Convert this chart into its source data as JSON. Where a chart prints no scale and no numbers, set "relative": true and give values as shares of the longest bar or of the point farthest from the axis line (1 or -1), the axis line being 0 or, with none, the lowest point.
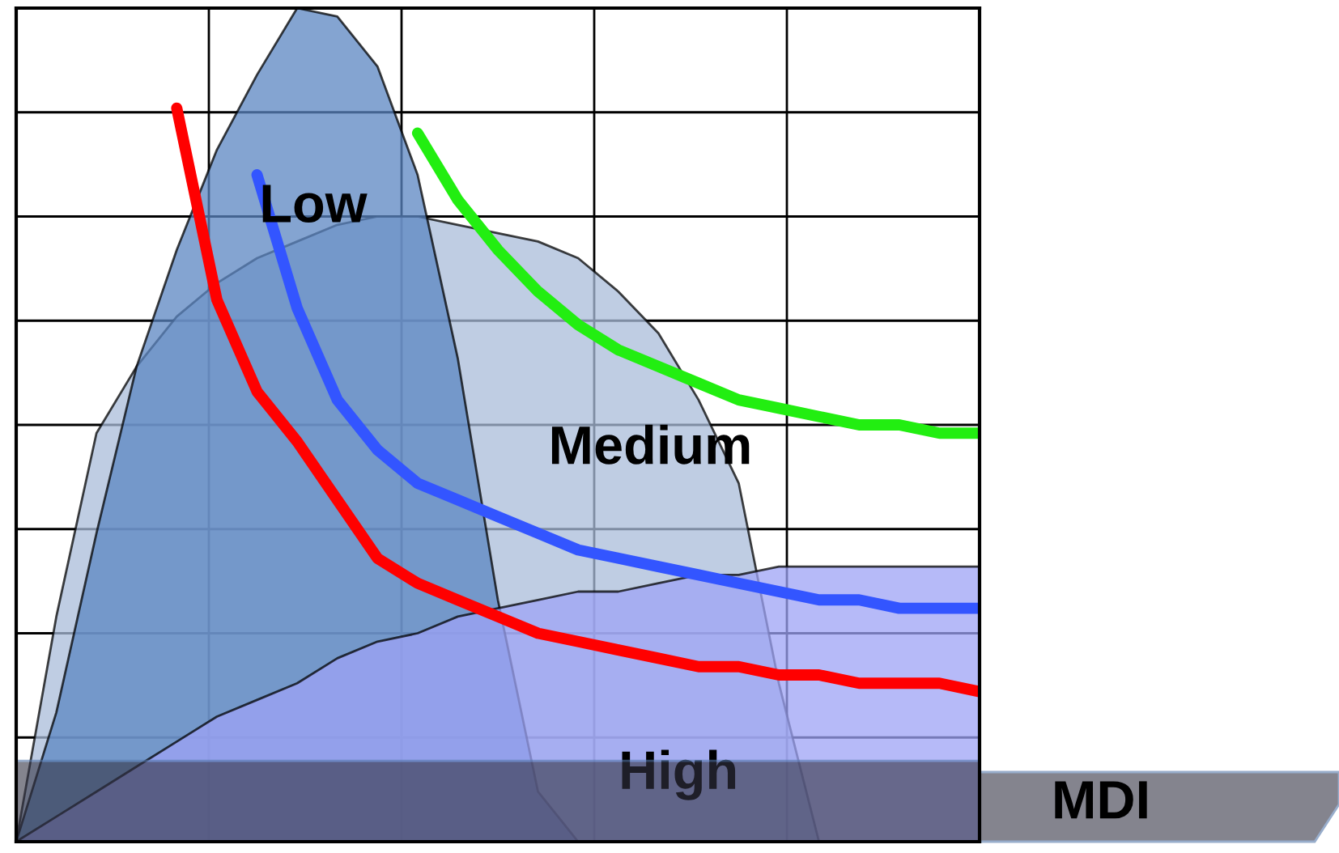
{
  "chart_data": {
    "type": "area",
    "relative": true,
    "xlabel": "MDI",
    "grid": true,
    "bands": [
      {
        "axis": "y",
        "from": 0,
        "to": 0.097,
        "color": "#333344"
      }
    ],
    "categories": [
      null,
      null,
      null,
      null,
      null,
      null,
      null,
      null,
      null,
      null,
      null,
      null,
      null,
      null,
      null,
      null,
      null,
      null,
      null,
      null,
      null,
      null,
      null,
      null,
      null
    ],
    "series": [
      {
        "name": "Medium",
        "color": "#a9bcd9",
        "values": [
          0,
          0.27,
          0.49,
          0.57,
          0.63,
          0.67,
          0.7,
          0.72,
          0.74,
          0.75,
          0.75,
          0.74,
          0.73,
          0.72,
          0.7,
          0.66,
          0.61,
          0.53,
          0.43,
          0.19,
          0,
          null,
          null,
          null,
          null
        ]
      },
      {
        "name": "Low",
        "color": "#5b86c2",
        "values": [
          0,
          0.155,
          0.37,
          0.57,
          0.71,
          0.83,
          0.92,
          1,
          0.99,
          0.93,
          0.8,
          0.58,
          0.29,
          0.06,
          0,
          null,
          null,
          null,
          null,
          null,
          null,
          null,
          null,
          null,
          null
        ]
      },
      {
        "name": "High",
        "color": "#9ea3f5",
        "values": [
          0,
          0.03,
          0.06,
          0.09,
          0.12,
          0.15,
          0.17,
          0.19,
          0.22,
          0.24,
          0.25,
          0.27,
          0.28,
          0.29,
          0.3,
          0.3,
          0.31,
          0.32,
          0.32,
          0.33,
          0.33,
          0.33,
          0.33,
          0.33,
          0.33
        ]
      },
      {
        "type": "line",
        "color": "#ff0000",
        "values": [
          null,
          null,
          null,
          null,
          0.88,
          0.65,
          0.54,
          0.48,
          0.41,
          0.34,
          0.31,
          0.29,
          0.27,
          0.25,
          0.24,
          0.23,
          0.22,
          0.21,
          0.21,
          0.2,
          0.2,
          0.19,
          0.19,
          0.19,
          0.18
        ]
      },
      {
        "type": "line",
        "color": "#3355ff",
        "values": [
          null,
          null,
          null,
          null,
          null,
          null,
          0.8,
          0.64,
          0.53,
          0.47,
          0.43,
          0.41,
          0.39,
          0.37,
          0.35,
          0.34,
          0.33,
          0.32,
          0.31,
          0.3,
          0.29,
          0.29,
          0.28,
          0.28,
          0.28
        ]
      },
      {
        "type": "line",
        "color": "#22ee11",
        "values": [
          null,
          null,
          null,
          null,
          null,
          null,
          null,
          null,
          null,
          null,
          0.85,
          0.77,
          0.71,
          0.66,
          0.62,
          0.59,
          0.57,
          0.55,
          0.53,
          0.52,
          0.51,
          0.5,
          0.5,
          0.49,
          0.49
        ]
      }
    ]
  }
}
